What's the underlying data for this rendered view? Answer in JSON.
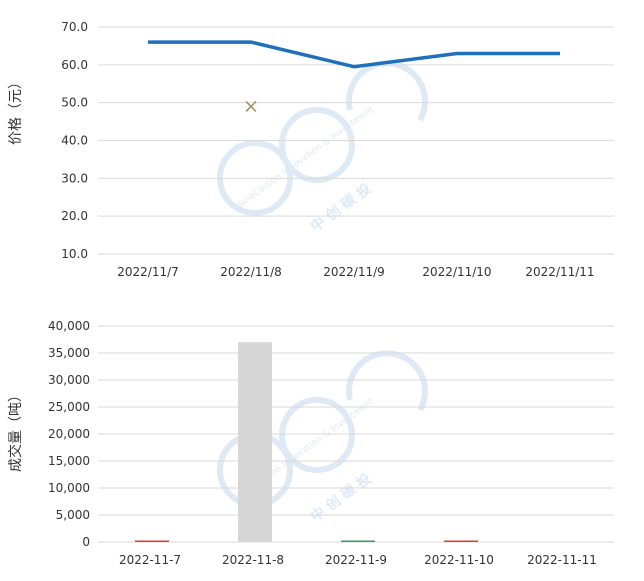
{
  "watermark": {
    "brand_en": "SinoCarbon Innovation & Investment",
    "brand_cn": "中 创 碳 投",
    "color": "#dbe7f4"
  },
  "chart_data": [
    {
      "type": "line",
      "ylabel": "价格（元）",
      "categories": [
        "2022/11/7",
        "2022/11/8",
        "2022/11/9",
        "2022/11/10",
        "2022/11/11"
      ],
      "ylim": [
        10,
        70
      ],
      "yticks": [
        "10.0",
        "20.0",
        "30.0",
        "40.0",
        "50.0",
        "60.0",
        "70.0"
      ],
      "grid": true,
      "series": [
        {
          "values": [
            66.0,
            66.0,
            59.5,
            63.0,
            63.0
          ],
          "color": "#1f6fbf",
          "marker": "none"
        },
        {
          "values": [
            null,
            49.0,
            null,
            null,
            null
          ],
          "color": "#a08c66",
          "marker": "x"
        }
      ]
    },
    {
      "type": "bar",
      "ylabel": "成交量（吨）",
      "categories": [
        "2022-11-7",
        "2022-11-8",
        "2022-11-9",
        "2022-11-10",
        "2022-11-11"
      ],
      "ylim": [
        0,
        40000
      ],
      "yticks": [
        "0",
        "5,000",
        "10,000",
        "15,000",
        "20,000",
        "25,000",
        "30,000",
        "35,000",
        "40,000"
      ],
      "grid": true,
      "values": [
        50,
        37000,
        40,
        250,
        0
      ],
      "colors": [
        "#e03b2e",
        "#d6d6d6",
        "#2f9e5c",
        "#e03b2e",
        "#e03b2e"
      ]
    }
  ]
}
